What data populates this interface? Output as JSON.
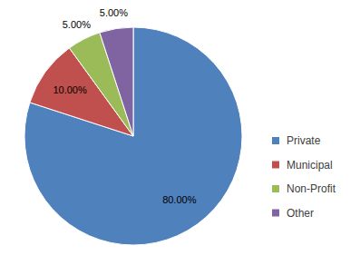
{
  "chart_data": {
    "type": "pie",
    "categories": [
      "Private",
      "Municipal",
      "Non-Profit",
      "Other"
    ],
    "values": [
      80,
      10,
      5,
      5
    ],
    "value_labels": [
      "80.00%",
      "10.00%",
      "5.00%",
      "5.00%"
    ],
    "colors": [
      "#4f81bd",
      "#c0504d",
      "#9bbb59",
      "#8064a2"
    ],
    "data_labels": true,
    "legend": "right"
  }
}
